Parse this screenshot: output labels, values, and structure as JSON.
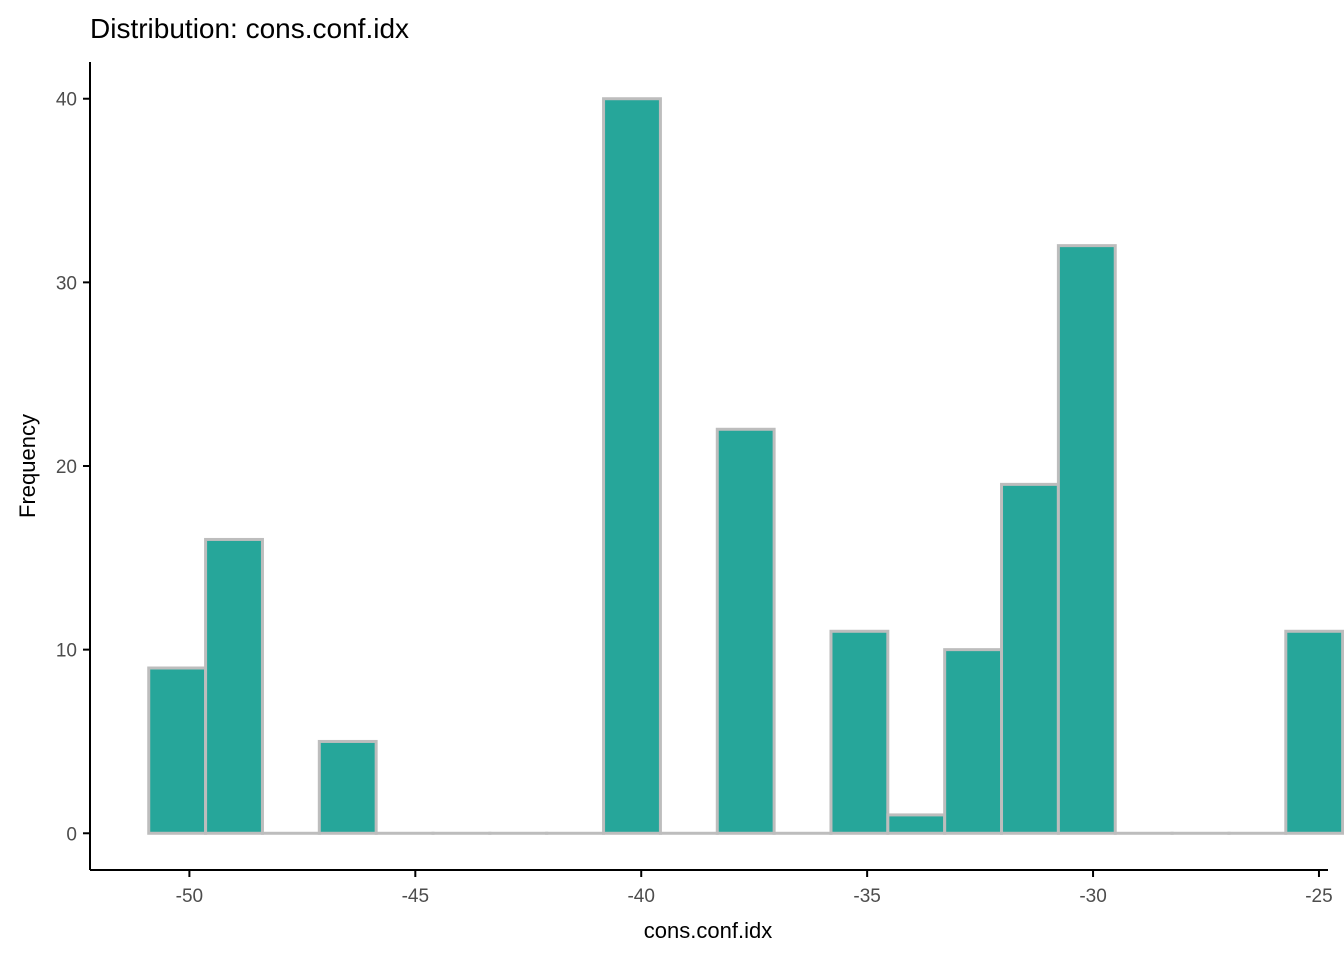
{
  "chart_data": {
    "type": "bar",
    "title": "Distribution: cons.conf.idx",
    "xlabel": "cons.conf.idx",
    "ylabel": "Frequency",
    "xlim": [
      -52.2,
      -24.8
    ],
    "ylim": [
      -2.0,
      42.0
    ],
    "x_ticks": [
      -50,
      -45,
      -40,
      -35,
      -30,
      -25
    ],
    "x_tick_labels": [
      "-50",
      "-45",
      "-40",
      "-35",
      "-30",
      "-25"
    ],
    "y_ticks": [
      0,
      10,
      20,
      30,
      40
    ],
    "y_tick_labels": [
      "0",
      "10",
      "20",
      "30",
      "40"
    ],
    "bin_width": 1.2583,
    "bins_start": -50.9,
    "values": [
      9,
      16,
      0,
      5,
      0,
      0,
      0,
      0,
      40,
      0,
      22,
      0,
      11,
      1,
      10,
      19,
      32,
      0,
      0,
      0,
      11
    ],
    "grid": false,
    "legend": "none",
    "colors": {
      "fill": "#26a69a",
      "stroke": "#bdbdbd",
      "axis": "#000000",
      "tick_text": "#4d4d4d"
    }
  }
}
